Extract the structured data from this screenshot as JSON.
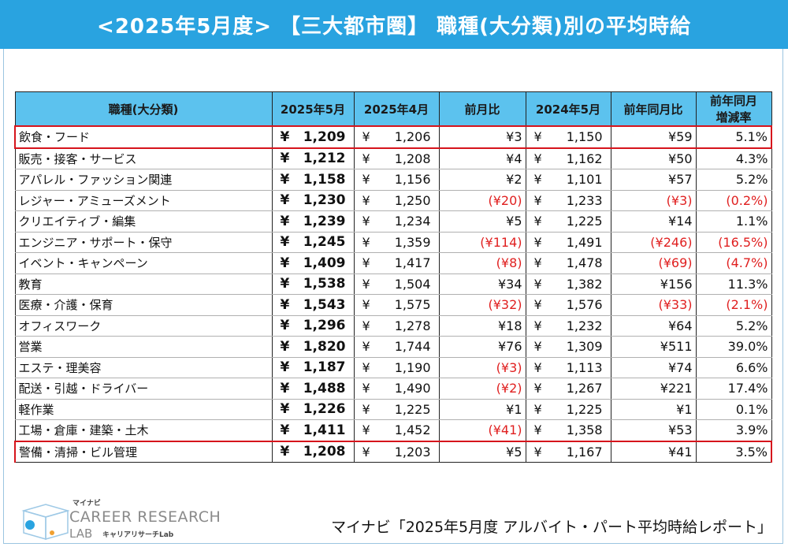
{
  "title": "<2025年5月度> 【三大都市圏】 職種(大分類)別の平均時給",
  "headers": [
    "職種(大分類)",
    "2025年5月",
    "2025年4月",
    "前月比",
    "2024年5月",
    "前年同月比",
    "前年同月\n増減率"
  ],
  "header_line1": "前年同月",
  "header_line2": "増減率",
  "yen_symbol": "¥",
  "rows": [
    {
      "job": "飲食・フード",
      "may25": "1,209",
      "apr25": "1,206",
      "mom": "¥3",
      "may24": "1,150",
      "yoy": "¥59",
      "rate": "5.1%",
      "mom_neg": false,
      "yoy_neg": false,
      "rate_neg": false,
      "highlight": true
    },
    {
      "job": "販売・接客・サービス",
      "may25": "1,212",
      "apr25": "1,208",
      "mom": "¥4",
      "may24": "1,162",
      "yoy": "¥50",
      "rate": "4.3%",
      "mom_neg": false,
      "yoy_neg": false,
      "rate_neg": false,
      "highlight": false
    },
    {
      "job": "アパレル・ファッション関連",
      "may25": "1,158",
      "apr25": "1,156",
      "mom": "¥2",
      "may24": "1,101",
      "yoy": "¥57",
      "rate": "5.2%",
      "mom_neg": false,
      "yoy_neg": false,
      "rate_neg": false,
      "highlight": false
    },
    {
      "job": "レジャー・アミューズメント",
      "may25": "1,230",
      "apr25": "1,250",
      "mom": "(¥20)",
      "may24": "1,233",
      "yoy": "(¥3)",
      "rate": "(0.2%)",
      "mom_neg": true,
      "yoy_neg": true,
      "rate_neg": true,
      "highlight": false
    },
    {
      "job": "クリエイティブ・編集",
      "may25": "1,239",
      "apr25": "1,234",
      "mom": "¥5",
      "may24": "1,225",
      "yoy": "¥14",
      "rate": "1.1%",
      "mom_neg": false,
      "yoy_neg": false,
      "rate_neg": false,
      "highlight": false
    },
    {
      "job": "エンジニア・サポート・保守",
      "may25": "1,245",
      "apr25": "1,359",
      "mom": "(¥114)",
      "may24": "1,491",
      "yoy": "(¥246)",
      "rate": "(16.5%)",
      "mom_neg": true,
      "yoy_neg": true,
      "rate_neg": true,
      "highlight": false
    },
    {
      "job": "イベント・キャンペーン",
      "may25": "1,409",
      "apr25": "1,417",
      "mom": "(¥8)",
      "may24": "1,478",
      "yoy": "(¥69)",
      "rate": "(4.7%)",
      "mom_neg": true,
      "yoy_neg": true,
      "rate_neg": true,
      "highlight": false
    },
    {
      "job": "教育",
      "may25": "1,538",
      "apr25": "1,504",
      "mom": "¥34",
      "may24": "1,382",
      "yoy": "¥156",
      "rate": "11.3%",
      "mom_neg": false,
      "yoy_neg": false,
      "rate_neg": false,
      "highlight": false
    },
    {
      "job": "医療・介護・保育",
      "may25": "1,543",
      "apr25": "1,575",
      "mom": "(¥32)",
      "may24": "1,576",
      "yoy": "(¥33)",
      "rate": "(2.1%)",
      "mom_neg": true,
      "yoy_neg": true,
      "rate_neg": true,
      "highlight": false
    },
    {
      "job": "オフィスワーク",
      "may25": "1,296",
      "apr25": "1,278",
      "mom": "¥18",
      "may24": "1,232",
      "yoy": "¥64",
      "rate": "5.2%",
      "mom_neg": false,
      "yoy_neg": false,
      "rate_neg": false,
      "highlight": false
    },
    {
      "job": "営業",
      "may25": "1,820",
      "apr25": "1,744",
      "mom": "¥76",
      "may24": "1,309",
      "yoy": "¥511",
      "rate": "39.0%",
      "mom_neg": false,
      "yoy_neg": false,
      "rate_neg": false,
      "highlight": false
    },
    {
      "job": "エステ・理美容",
      "may25": "1,187",
      "apr25": "1,190",
      "mom": "(¥3)",
      "may24": "1,113",
      "yoy": "¥74",
      "rate": "6.6%",
      "mom_neg": true,
      "yoy_neg": false,
      "rate_neg": false,
      "highlight": false
    },
    {
      "job": "配送・引越・ドライバー",
      "may25": "1,488",
      "apr25": "1,490",
      "mom": "(¥2)",
      "may24": "1,267",
      "yoy": "¥221",
      "rate": "17.4%",
      "mom_neg": true,
      "yoy_neg": false,
      "rate_neg": false,
      "highlight": false
    },
    {
      "job": "軽作業",
      "may25": "1,226",
      "apr25": "1,225",
      "mom": "¥1",
      "may24": "1,225",
      "yoy": "¥1",
      "rate": "0.1%",
      "mom_neg": false,
      "yoy_neg": false,
      "rate_neg": false,
      "highlight": false
    },
    {
      "job": "工場・倉庫・建築・土木",
      "may25": "1,411",
      "apr25": "1,452",
      "mom": "(¥41)",
      "may24": "1,358",
      "yoy": "¥53",
      "rate": "3.9%",
      "mom_neg": true,
      "yoy_neg": false,
      "rate_neg": false,
      "highlight": false
    },
    {
      "job": "警備・清掃・ビル管理",
      "may25": "1,208",
      "apr25": "1,203",
      "mom": "¥5",
      "may24": "1,167",
      "yoy": "¥41",
      "rate": "3.5%",
      "mom_neg": false,
      "yoy_neg": false,
      "rate_neg": false,
      "highlight": true
    }
  ],
  "logo": {
    "small": "マイナビ",
    "main": "CAREER RESEARCH",
    "lab": "LAB",
    "sub": "キャリアリサーチLab",
    "icon": "cube-logo-icon"
  },
  "source": "マイナビ「2025年5月度 アルバイト・パート平均時給レポート」",
  "colors": {
    "title_bg": "#29a3e0",
    "header_bg": "#5cc2ee",
    "negative": "#e02020",
    "highlight_border": "#d6141c"
  }
}
